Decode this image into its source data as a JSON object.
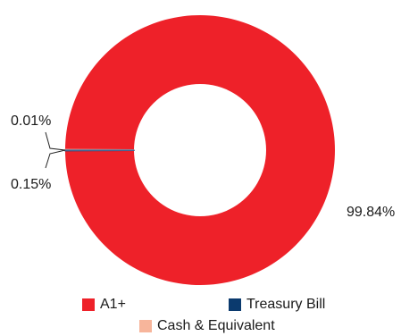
{
  "chart_data": {
    "type": "pie",
    "style": "donut",
    "categories": [
      "A1+",
      "Treasury Bill",
      "Cash & Equivalent"
    ],
    "values": [
      99.84,
      0.01,
      0.15
    ],
    "data_labels": [
      "99.84%",
      "0.01%",
      "0.15%"
    ],
    "colors": [
      "#ee2129",
      "#0b3a6e",
      "#f7b59b"
    ],
    "legend": {
      "placement": "bottom"
    }
  }
}
